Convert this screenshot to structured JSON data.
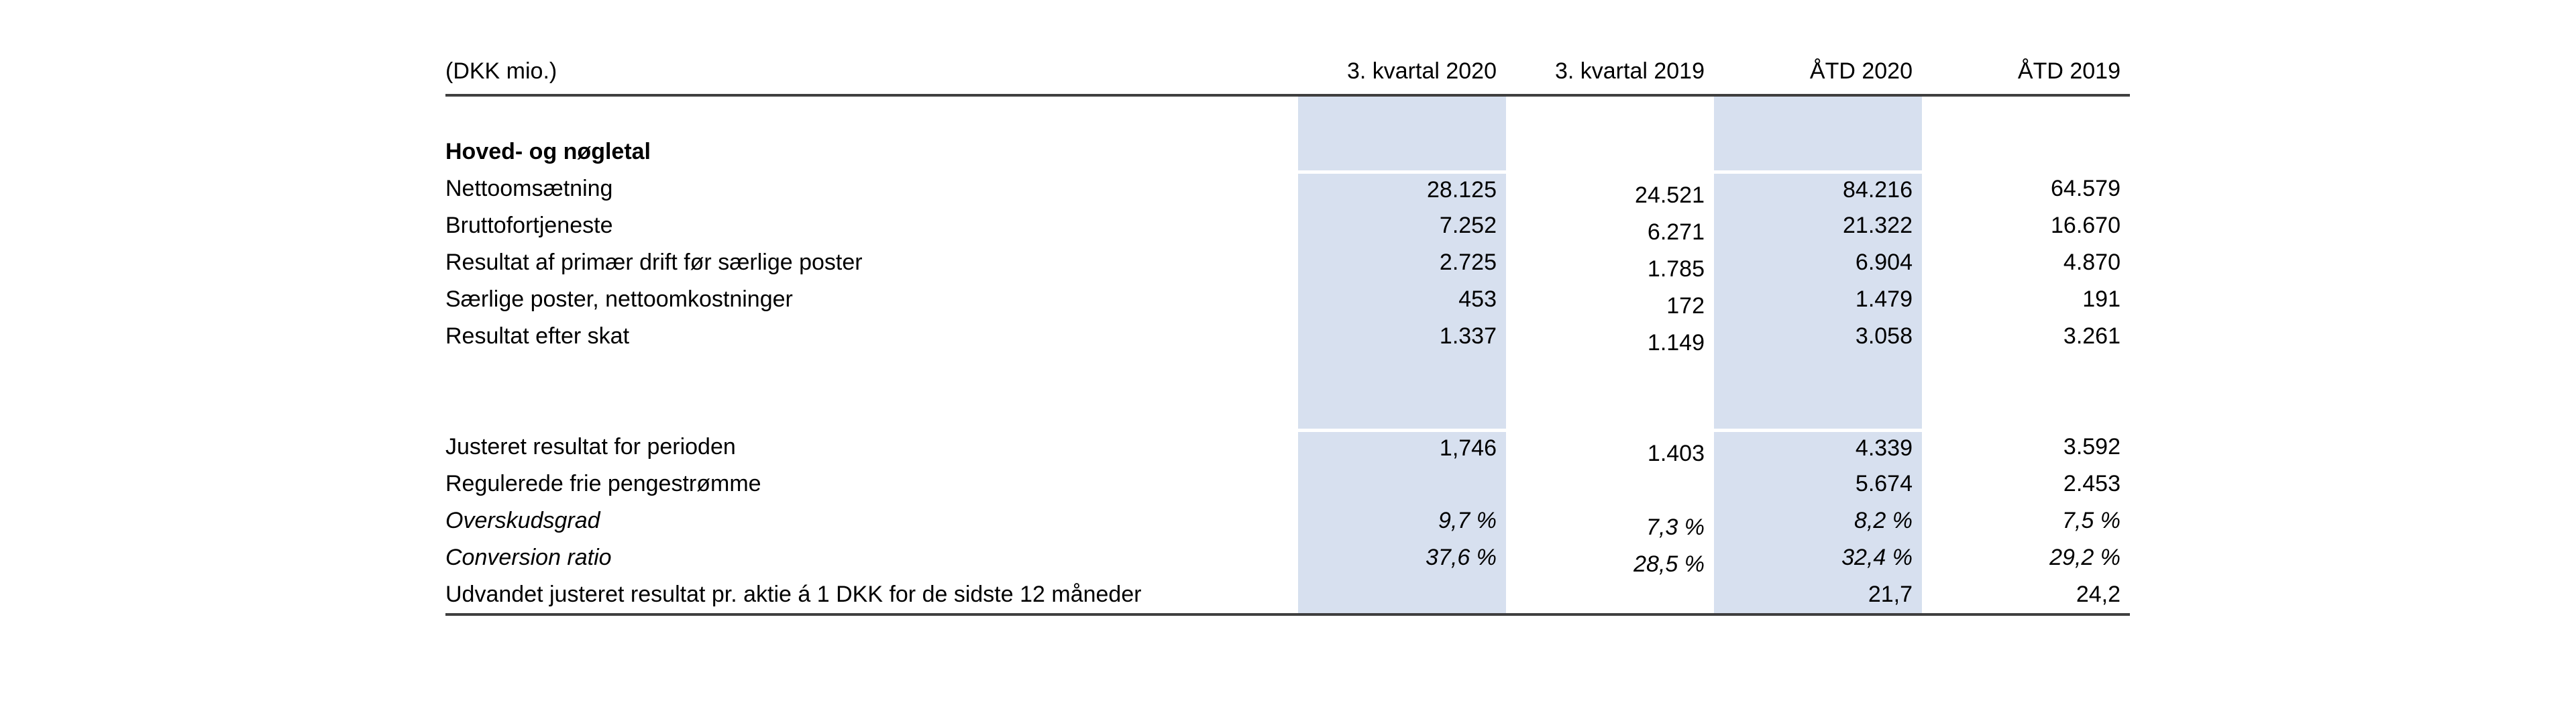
{
  "colors": {
    "band": "#d7e0ef",
    "rule": "#3f3f3f",
    "text": "#000000",
    "background": "#ffffff"
  },
  "table": {
    "unit_header": "(DKK mio.)",
    "columns": [
      "3. kvartal 2020",
      "3. kvartal 2019",
      "ÅTD 2020",
      "ÅTD 2019"
    ],
    "section_title": "Hoved- og nøgletal",
    "rows": [
      {
        "label": "",
        "style": "normal",
        "gap_above": false,
        "values": [
          "",
          "",
          "",
          ""
        ]
      },
      {
        "label": "Hoved- og nøgletal",
        "style": "bold",
        "gap_above": false,
        "values": [
          "",
          "",
          "",
          ""
        ]
      },
      {
        "label": "Nettoomsætning",
        "style": "normal",
        "gap_above": true,
        "values": [
          "28.125",
          "24.521",
          "84.216",
          "64.579"
        ]
      },
      {
        "label": "Bruttofortjeneste",
        "style": "normal",
        "gap_above": false,
        "values": [
          "7.252",
          "6.271",
          "21.322",
          "16.670"
        ]
      },
      {
        "label": "Resultat af primær drift før særlige poster",
        "style": "normal",
        "gap_above": false,
        "values": [
          "2.725",
          "1.785",
          "6.904",
          "4.870"
        ]
      },
      {
        "label": "Særlige poster, nettoomkostninger",
        "style": "normal",
        "gap_above": false,
        "values": [
          "453",
          "172",
          "1.479",
          "191"
        ]
      },
      {
        "label": "Resultat efter skat",
        "style": "normal",
        "gap_above": false,
        "values": [
          "1.337",
          "1.149",
          "3.058",
          "3.261"
        ]
      },
      {
        "label": "",
        "style": "normal",
        "gap_above": false,
        "values": [
          "",
          "",
          "",
          ""
        ]
      },
      {
        "label": "",
        "style": "normal",
        "gap_above": false,
        "values": [
          "",
          "",
          "",
          ""
        ]
      },
      {
        "label": "Justeret resultat for perioden",
        "style": "normal",
        "gap_above": true,
        "values": [
          "1,746",
          "1.403",
          "4.339",
          "3.592"
        ]
      },
      {
        "label": "Regulerede frie pengestrømme",
        "style": "normal",
        "gap_above": false,
        "values": [
          "",
          "",
          "5.674",
          "2.453"
        ]
      },
      {
        "label": "Overskudsgrad",
        "style": "italic",
        "gap_above": false,
        "values": [
          "9,7 %",
          "7,3 %",
          "8,2 %",
          "7,5 %"
        ]
      },
      {
        "label": "Conversion ratio",
        "style": "italic",
        "gap_above": false,
        "values": [
          "37,6 %",
          "28,5 %",
          "32,4 %",
          "29,2 %"
        ]
      },
      {
        "label": "Udvandet justeret resultat pr. aktie á 1 DKK for de sidste 12 måneder",
        "style": "normal",
        "gap_above": false,
        "values": [
          "",
          "",
          "21,7",
          "24,2"
        ]
      }
    ]
  }
}
